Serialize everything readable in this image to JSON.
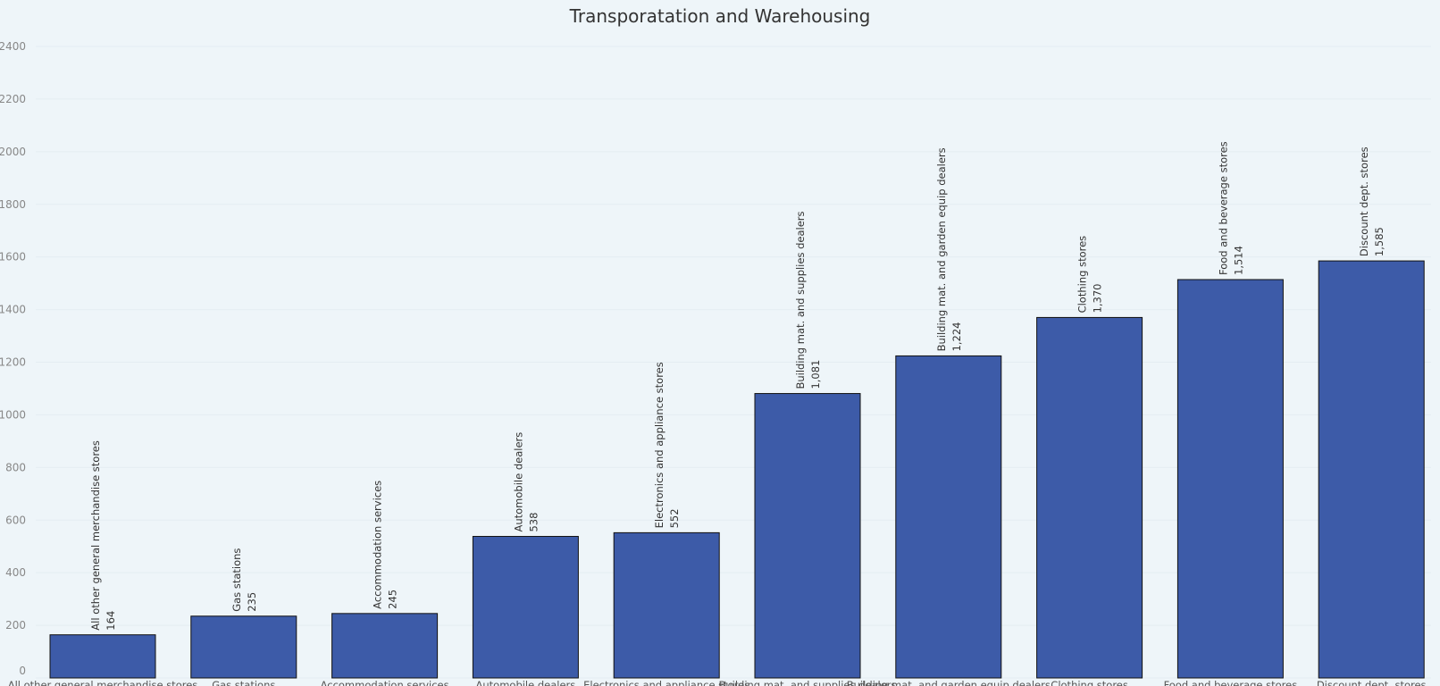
{
  "chart_data": {
    "type": "bar",
    "title": "Transporatation and Warehousing",
    "xlabel": "",
    "ylabel": "",
    "ylim": [
      0,
      2400
    ],
    "yticks": [
      0,
      200,
      400,
      600,
      800,
      1000,
      1200,
      1400,
      1600,
      1800,
      2000,
      2200,
      2400
    ],
    "grid": true,
    "legend": false,
    "categories": [
      "All other general merchandise stores",
      "Gas stations",
      "Accommodation services",
      "Automobile dealers",
      "Electronics and appliance stores",
      "Building mat. and supplies dealers",
      "Building mat. and garden equip dealers",
      "Clothing stores",
      "Food and beverage stores",
      "Discount dept. stores"
    ],
    "values": [
      164,
      235,
      245,
      538,
      552,
      1081,
      1224,
      1370,
      1514,
      1585
    ],
    "value_labels": [
      "164",
      "235",
      "245",
      "538",
      "552",
      "1,081",
      "1,224",
      "1,370",
      "1,514",
      "1,585"
    ]
  },
  "colors": {
    "background": "#eef5f9",
    "bar_fill": "#3d5ba8",
    "bar_stroke": "#111111",
    "title": "#333333",
    "tick": "#888888"
  }
}
